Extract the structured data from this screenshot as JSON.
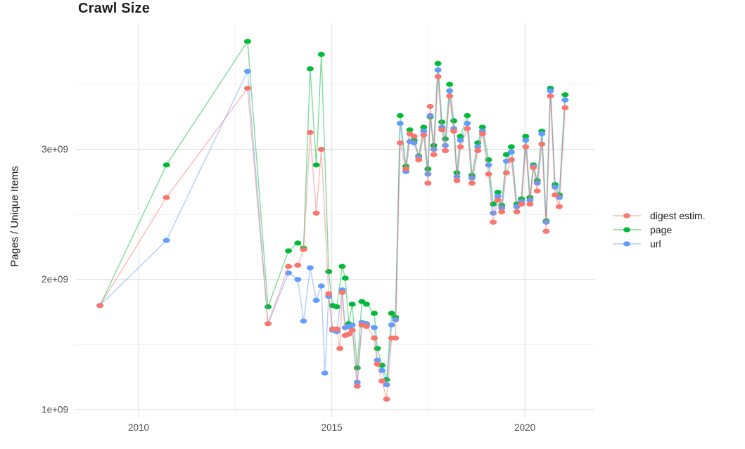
{
  "chart_data": {
    "type": "line",
    "title": "Crawl Size",
    "ylabel": "Pages / Unique Items",
    "xlabel": "",
    "y_unit": "pages (value 1.0 = 1e+09)",
    "grid": true,
    "legend_position": "right",
    "x_axis": {
      "range": [
        2008.36,
        2021.8
      ],
      "major_ticks": [
        {
          "value": 2010,
          "label": "2010"
        },
        {
          "value": 2015,
          "label": "2015"
        },
        {
          "value": 2020,
          "label": "2020"
        }
      ],
      "minor_ticks": [
        2012.5,
        2017.5
      ]
    },
    "y_axis": {
      "range": [
        0.94,
        3.97
      ],
      "major_ticks": [
        {
          "value": 1,
          "label": "1e+09"
        },
        {
          "value": 2,
          "label": "2e+09"
        },
        {
          "value": 3,
          "label": "3e+09"
        }
      ],
      "minor_ticks": [
        1.5,
        2.5,
        3.5
      ]
    },
    "draw_order": [
      "page",
      "url",
      "digest estim."
    ],
    "series": [
      {
        "name": "digest estim.",
        "color": "#F8766D",
        "points": [
          [
            2009.0,
            1.8
          ],
          [
            2010.72,
            2.63
          ],
          [
            2012.82,
            3.47
          ],
          [
            2013.35,
            1.66
          ],
          [
            2013.88,
            2.1
          ],
          [
            2014.12,
            2.11
          ],
          [
            2014.27,
            2.23
          ],
          [
            2014.44,
            3.13
          ],
          [
            2014.6,
            2.51
          ],
          [
            2014.73,
            3.0
          ],
          [
            2014.92,
            1.89
          ],
          [
            2015.02,
            1.62
          ],
          [
            2015.13,
            1.62
          ],
          [
            2015.21,
            1.47
          ],
          [
            2015.27,
            1.9
          ],
          [
            2015.35,
            1.57
          ],
          [
            2015.44,
            1.58
          ],
          [
            2015.53,
            1.61
          ],
          [
            2015.66,
            1.18
          ],
          [
            2015.78,
            1.65
          ],
          [
            2015.9,
            1.64
          ],
          [
            2016.1,
            1.55
          ],
          [
            2016.18,
            1.35
          ],
          [
            2016.3,
            1.22
          ],
          [
            2016.42,
            1.08
          ],
          [
            2016.55,
            1.55
          ],
          [
            2016.65,
            1.55
          ],
          [
            2016.77,
            3.05
          ],
          [
            2016.92,
            2.85
          ],
          [
            2017.02,
            3.12
          ],
          [
            2017.13,
            3.1
          ],
          [
            2017.25,
            2.92
          ],
          [
            2017.38,
            3.11
          ],
          [
            2017.49,
            2.74
          ],
          [
            2017.55,
            3.33
          ],
          [
            2017.64,
            2.96
          ],
          [
            2017.75,
            3.56
          ],
          [
            2017.85,
            3.15
          ],
          [
            2017.94,
            2.99
          ],
          [
            2018.05,
            3.41
          ],
          [
            2018.16,
            3.14
          ],
          [
            2018.24,
            2.76
          ],
          [
            2018.33,
            3.02
          ],
          [
            2018.51,
            3.16
          ],
          [
            2018.63,
            2.74
          ],
          [
            2018.78,
            2.99
          ],
          [
            2018.9,
            3.12
          ],
          [
            2019.06,
            2.81
          ],
          [
            2019.18,
            2.44
          ],
          [
            2019.3,
            2.61
          ],
          [
            2019.4,
            2.52
          ],
          [
            2019.52,
            2.82
          ],
          [
            2019.65,
            2.92
          ],
          [
            2019.79,
            2.52
          ],
          [
            2019.91,
            2.58
          ],
          [
            2020.02,
            3.02
          ],
          [
            2020.13,
            2.58
          ],
          [
            2020.22,
            2.86
          ],
          [
            2020.32,
            2.68
          ],
          [
            2020.44,
            3.04
          ],
          [
            2020.55,
            2.37
          ],
          [
            2020.66,
            3.41
          ],
          [
            2020.78,
            2.65
          ],
          [
            2020.89,
            2.56
          ],
          [
            2021.04,
            3.32
          ]
        ]
      },
      {
        "name": "page",
        "color": "#00BA38",
        "points": [
          [
            2009.0,
            1.8
          ],
          [
            2010.72,
            2.88
          ],
          [
            2012.82,
            3.83
          ],
          [
            2013.35,
            1.79
          ],
          [
            2013.88,
            2.22
          ],
          [
            2014.12,
            2.28
          ],
          [
            2014.27,
            2.24
          ],
          [
            2014.44,
            3.62
          ],
          [
            2014.6,
            2.88
          ],
          [
            2014.73,
            3.73
          ],
          [
            2014.92,
            2.06
          ],
          [
            2015.02,
            1.8
          ],
          [
            2015.13,
            1.79
          ],
          [
            2015.27,
            2.1
          ],
          [
            2015.35,
            2.01
          ],
          [
            2015.44,
            1.66
          ],
          [
            2015.53,
            1.81
          ],
          [
            2015.66,
            1.32
          ],
          [
            2015.78,
            1.83
          ],
          [
            2015.9,
            1.81
          ],
          [
            2016.1,
            1.74
          ],
          [
            2016.18,
            1.47
          ],
          [
            2016.3,
            1.34
          ],
          [
            2016.42,
            1.23
          ],
          [
            2016.55,
            1.74
          ],
          [
            2016.65,
            1.71
          ],
          [
            2016.77,
            3.26
          ],
          [
            2016.92,
            2.87
          ],
          [
            2017.02,
            3.15
          ],
          [
            2017.13,
            3.07
          ],
          [
            2017.25,
            2.95
          ],
          [
            2017.38,
            3.17
          ],
          [
            2017.49,
            2.85
          ],
          [
            2017.55,
            3.25
          ],
          [
            2017.64,
            3.03
          ],
          [
            2017.75,
            3.66
          ],
          [
            2017.85,
            3.21
          ],
          [
            2017.94,
            3.08
          ],
          [
            2018.05,
            3.5
          ],
          [
            2018.16,
            3.22
          ],
          [
            2018.24,
            2.82
          ],
          [
            2018.33,
            3.1
          ],
          [
            2018.51,
            3.26
          ],
          [
            2018.63,
            2.8
          ],
          [
            2018.78,
            3.05
          ],
          [
            2018.9,
            3.17
          ],
          [
            2019.06,
            2.92
          ],
          [
            2019.18,
            2.58
          ],
          [
            2019.3,
            2.67
          ],
          [
            2019.4,
            2.57
          ],
          [
            2019.52,
            2.96
          ],
          [
            2019.65,
            3.02
          ],
          [
            2019.79,
            2.58
          ],
          [
            2019.91,
            2.62
          ],
          [
            2020.02,
            3.1
          ],
          [
            2020.13,
            2.63
          ],
          [
            2020.22,
            2.88
          ],
          [
            2020.32,
            2.76
          ],
          [
            2020.44,
            3.14
          ],
          [
            2020.55,
            2.45
          ],
          [
            2020.66,
            3.47
          ],
          [
            2020.78,
            2.73
          ],
          [
            2020.89,
            2.65
          ],
          [
            2021.04,
            3.42
          ]
        ]
      },
      {
        "name": "url",
        "color": "#619CFF",
        "points": [
          [
            2009.0,
            1.8
          ],
          [
            2010.72,
            2.3
          ],
          [
            2012.82,
            3.6
          ],
          [
            2013.35,
            1.66
          ],
          [
            2013.88,
            2.05
          ],
          [
            2014.12,
            2.0
          ],
          [
            2014.27,
            1.68
          ],
          [
            2014.44,
            2.09
          ],
          [
            2014.6,
            1.84
          ],
          [
            2014.73,
            1.95
          ],
          [
            2014.82,
            1.28
          ],
          [
            2014.92,
            1.87
          ],
          [
            2015.02,
            1.61
          ],
          [
            2015.13,
            1.6
          ],
          [
            2015.27,
            1.92
          ],
          [
            2015.35,
            1.63
          ],
          [
            2015.44,
            1.64
          ],
          [
            2015.53,
            1.65
          ],
          [
            2015.66,
            1.21
          ],
          [
            2015.78,
            1.67
          ],
          [
            2015.9,
            1.66
          ],
          [
            2016.1,
            1.63
          ],
          [
            2016.18,
            1.38
          ],
          [
            2016.3,
            1.3
          ],
          [
            2016.42,
            1.19
          ],
          [
            2016.55,
            1.65
          ],
          [
            2016.65,
            1.69
          ],
          [
            2016.77,
            3.2
          ],
          [
            2016.92,
            2.83
          ],
          [
            2017.02,
            3.06
          ],
          [
            2017.13,
            3.05
          ],
          [
            2017.25,
            2.94
          ],
          [
            2017.38,
            3.14
          ],
          [
            2017.49,
            2.81
          ],
          [
            2017.55,
            3.26
          ],
          [
            2017.64,
            3.0
          ],
          [
            2017.75,
            3.61
          ],
          [
            2017.85,
            3.17
          ],
          [
            2017.94,
            3.03
          ],
          [
            2018.05,
            3.45
          ],
          [
            2018.16,
            3.16
          ],
          [
            2018.24,
            2.79
          ],
          [
            2018.33,
            3.07
          ],
          [
            2018.51,
            3.2
          ],
          [
            2018.63,
            2.78
          ],
          [
            2018.78,
            3.02
          ],
          [
            2018.9,
            3.14
          ],
          [
            2019.06,
            2.88
          ],
          [
            2019.18,
            2.51
          ],
          [
            2019.3,
            2.64
          ],
          [
            2019.4,
            2.55
          ],
          [
            2019.52,
            2.91
          ],
          [
            2019.65,
            2.98
          ],
          [
            2019.79,
            2.56
          ],
          [
            2019.91,
            2.6
          ],
          [
            2020.02,
            3.07
          ],
          [
            2020.13,
            2.61
          ],
          [
            2020.22,
            2.87
          ],
          [
            2020.32,
            2.74
          ],
          [
            2020.44,
            3.12
          ],
          [
            2020.55,
            2.44
          ],
          [
            2020.66,
            3.45
          ],
          [
            2020.78,
            2.71
          ],
          [
            2020.89,
            2.63
          ],
          [
            2021.04,
            3.38
          ]
        ]
      }
    ]
  },
  "legend": {
    "items": [
      {
        "label": "digest estim.",
        "color": "#F8766D"
      },
      {
        "label": "page",
        "color": "#00BA38"
      },
      {
        "label": "url",
        "color": "#619CFF"
      }
    ]
  },
  "colors": {
    "background": "#FFFFFF",
    "grid_major": "#E2E2E2",
    "grid_minor": "#EFEFEF",
    "axis_text": "#4D4D4D",
    "title_text": "#1F1F1F"
  }
}
